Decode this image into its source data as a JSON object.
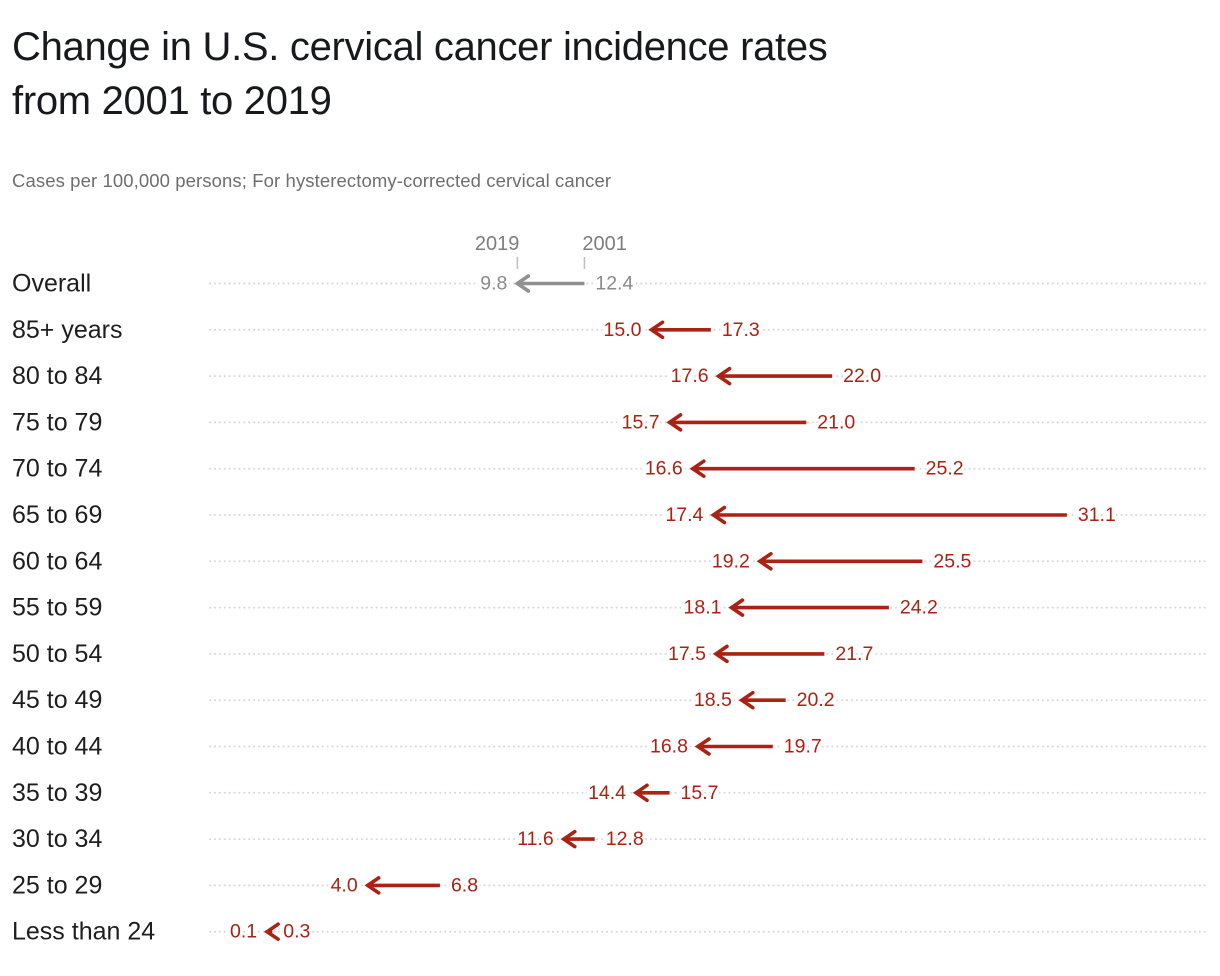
{
  "title": {
    "line1": "Change in U.S. cervical cancer incidence rates",
    "line2": "from 2001 to 2019"
  },
  "subtitle": "Cases per 100,000 persons; For hysterectomy-corrected cervical cancer",
  "chart_data": {
    "type": "scatter",
    "subtype": "arrow-dumbbell",
    "title": "Change in U.S. cervical cancer incidence rates from 2001 to 2019",
    "xlabel": "",
    "ylabel": "",
    "xlim": [
      0,
      36.5
    ],
    "grid": "dotted-row-lines",
    "legend_position": "top-ticks-over-first-row",
    "categories": [
      "Overall",
      "85+ years",
      "80 to 84",
      "75 to 79",
      "70 to 74",
      "65 to 69",
      "60 to 64",
      "55 to 59",
      "50 to 54",
      "45 to 49",
      "40 to 44",
      "35 to 39",
      "30 to 34",
      "25 to 29",
      "Less than 24"
    ],
    "series": [
      {
        "name": "2019",
        "values": [
          9.8,
          15.0,
          17.6,
          15.7,
          16.6,
          17.4,
          19.2,
          18.1,
          17.5,
          18.5,
          16.8,
          14.4,
          11.6,
          4.0,
          0.1
        ]
      },
      {
        "name": "2001",
        "values": [
          12.4,
          17.3,
          22.0,
          21.0,
          25.2,
          31.1,
          25.5,
          24.2,
          21.7,
          20.2,
          19.7,
          15.7,
          12.8,
          6.8,
          0.3
        ]
      }
    ],
    "arrow_direction": "from 2001 value to 2019 value (pointing left, values declined)",
    "value_format": "one_decimal",
    "colors": {
      "arrow": "#aa2213",
      "value_label": "#aa2213",
      "overall_arrow": "#909090",
      "overall_value_label": "#8b8b8b",
      "row_label": "#1e1e1e",
      "axis_year_label": "#7d7d7d",
      "tick": "#bdbdbd",
      "dotted_line": "#d7d7d7"
    }
  }
}
